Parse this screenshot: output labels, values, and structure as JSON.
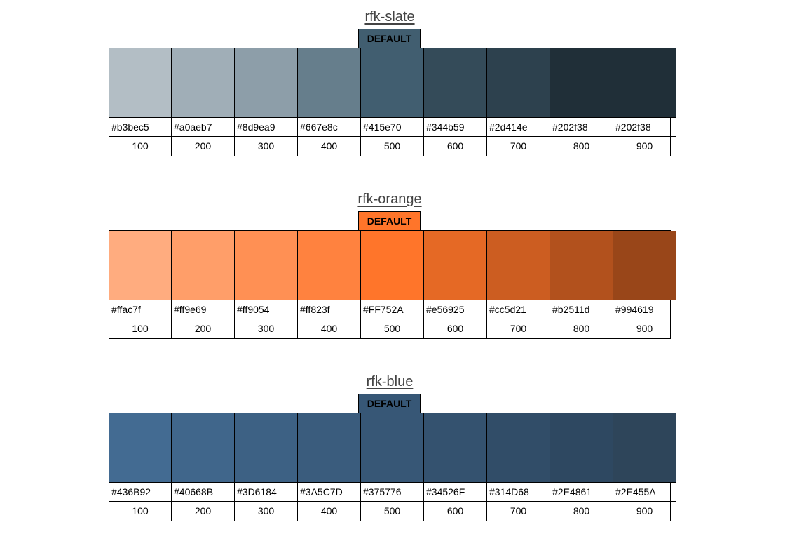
{
  "palettes": [
    {
      "name": "rfk-slate",
      "default_label": "DEFAULT",
      "default_index": 4,
      "swatches": [
        {
          "hex": "#b3bec5",
          "shade": "100",
          "color": "#b3bec5"
        },
        {
          "hex": "#a0aeb7",
          "shade": "200",
          "color": "#a0aeb7"
        },
        {
          "hex": "#8d9ea9",
          "shade": "300",
          "color": "#8d9ea9"
        },
        {
          "hex": "#667e8c",
          "shade": "400",
          "color": "#667e8c"
        },
        {
          "hex": "#415e70",
          "shade": "500",
          "color": "#415e70"
        },
        {
          "hex": "#344b59",
          "shade": "600",
          "color": "#344b59"
        },
        {
          "hex": "#2d414e",
          "shade": "700",
          "color": "#2d414e"
        },
        {
          "hex": "#202f38",
          "shade": "800",
          "color": "#202f38"
        },
        {
          "hex": "#202f38",
          "shade": "900",
          "color": "#202f38"
        }
      ]
    },
    {
      "name": "rfk-orange",
      "default_label": "DEFAULT",
      "default_index": 4,
      "swatches": [
        {
          "hex": "#ffac7f",
          "shade": "100",
          "color": "#ffac7f"
        },
        {
          "hex": "#ff9e69",
          "shade": "200",
          "color": "#ff9e69"
        },
        {
          "hex": "#ff9054",
          "shade": "300",
          "color": "#ff9054"
        },
        {
          "hex": "#ff823f",
          "shade": "400",
          "color": "#ff823f"
        },
        {
          "hex": "#FF752A",
          "shade": "500",
          "color": "#FF752A"
        },
        {
          "hex": "#e56925",
          "shade": "600",
          "color": "#e56925"
        },
        {
          "hex": "#cc5d21",
          "shade": "700",
          "color": "#cc5d21"
        },
        {
          "hex": "#b2511d",
          "shade": "800",
          "color": "#b2511d"
        },
        {
          "hex": "#994619",
          "shade": "900",
          "color": "#994619"
        }
      ]
    },
    {
      "name": "rfk-blue",
      "default_label": "DEFAULT",
      "default_index": 4,
      "swatches": [
        {
          "hex": "#436B92",
          "shade": "100",
          "color": "#436B92"
        },
        {
          "hex": "#40668B",
          "shade": "200",
          "color": "#40668B"
        },
        {
          "hex": "#3D6184",
          "shade": "300",
          "color": "#3D6184"
        },
        {
          "hex": "#3A5C7D",
          "shade": "400",
          "color": "#3A5C7D"
        },
        {
          "hex": "#375776",
          "shade": "500",
          "color": "#375776"
        },
        {
          "hex": "#34526F",
          "shade": "600",
          "color": "#34526F"
        },
        {
          "hex": "#314D68",
          "shade": "700",
          "color": "#314D68"
        },
        {
          "hex": "#2E4861",
          "shade": "800",
          "color": "#2E4861"
        },
        {
          "hex": "#2E455A",
          "shade": "900",
          "color": "#2E455A"
        }
      ]
    }
  ]
}
